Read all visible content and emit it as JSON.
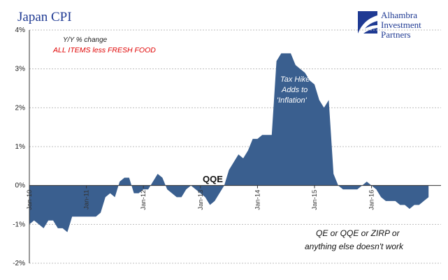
{
  "title": "Japan CPI",
  "subtitle": "Y/Y % change",
  "series_label": "ALL ITEMS less FRESH FOOD",
  "logo": {
    "line1": "Alhambra",
    "line2": "Investment",
    "line3": "Partners"
  },
  "annotations": {
    "tax_hike": [
      "Tax Hike",
      "Adds to",
      "'Inflation'"
    ],
    "qqe": "QQE",
    "note": [
      "QE or QQE or ZIRP or",
      "anything else doesn't work"
    ]
  },
  "colors": {
    "fill": "#3a5f8f",
    "title": "#1f3a93",
    "label_red": "#e00000"
  },
  "chart_data": {
    "type": "area",
    "y_ticks": [
      "4%",
      "3%",
      "2%",
      "1%",
      "0%",
      "-1%",
      "-2%"
    ],
    "ylim": [
      -2,
      4
    ],
    "x_ticks": [
      "Jan-10",
      "Jan-11",
      "Jan-12",
      "Jan-13",
      "Jan-14",
      "Jan-15",
      "Jan-16"
    ],
    "start": "Jan-10",
    "series": [
      {
        "values": [
          -1.0,
          -0.9,
          -1.0,
          -1.1,
          -0.9,
          -0.9,
          -1.1,
          -1.1,
          -1.2,
          -0.8,
          -0.8,
          -0.8,
          -0.8,
          -0.8,
          -0.8,
          -0.7,
          -0.3,
          -0.2,
          -0.3,
          0.1,
          0.2,
          0.2,
          -0.2,
          -0.2,
          -0.1,
          -0.1,
          0.1,
          0.3,
          0.2,
          -0.1,
          -0.2,
          -0.3,
          -0.3,
          -0.1,
          0.0,
          -0.1,
          -0.2,
          -0.3,
          -0.5,
          -0.4,
          -0.2,
          0.0,
          0.4,
          0.6,
          0.8,
          0.7,
          0.9,
          1.2,
          1.2,
          1.3,
          1.3,
          1.3,
          3.2,
          3.4,
          3.4,
          3.4,
          3.1,
          3.0,
          2.9,
          2.7,
          2.6,
          2.2,
          2.0,
          2.2,
          0.3,
          0.0,
          -0.1,
          -0.1,
          -0.1,
          -0.1,
          0.0,
          0.1,
          0.0,
          -0.1,
          -0.3,
          -0.4,
          -0.4,
          -0.4,
          -0.5,
          -0.5,
          -0.6,
          -0.5,
          -0.5,
          -0.4,
          -0.3
        ]
      }
    ]
  }
}
